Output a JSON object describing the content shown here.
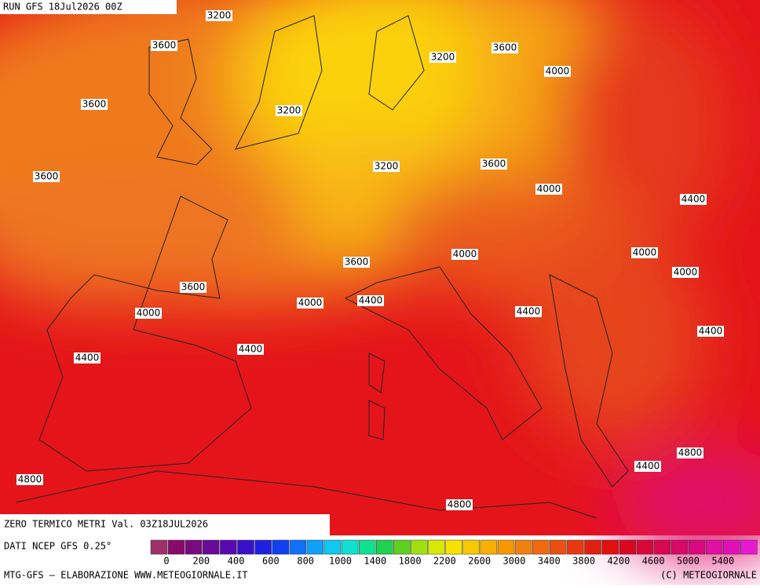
{
  "header": {
    "run": "RUN GFS 18Jul2026 00Z"
  },
  "map": {
    "title": "ZERO TERMICO METRI Val. 03Z18JUL2026",
    "contour_labels": [
      "3200",
      "3600",
      "3200",
      "3600",
      "4000",
      "3600",
      "3200",
      "3200",
      "3600",
      "4000",
      "4400",
      "3600",
      "3600",
      "4000",
      "4000",
      "4000",
      "3600",
      "4000",
      "4400",
      "4000",
      "4400",
      "4400",
      "4400",
      "4400",
      "4800",
      "4400",
      "4800",
      "4800"
    ]
  },
  "legend": {
    "source": "DATI NCEP GFS 0.25°",
    "labels": [
      "0",
      "200",
      "400",
      "600",
      "800",
      "1000",
      "1400",
      "1800",
      "2200",
      "2600",
      "3000",
      "3400",
      "3800",
      "4200",
      "4600",
      "5000",
      "5400"
    ]
  },
  "footer": {
    "left": "MTG-GFS — ELABORAZIONE WWW.METEOGIORNALE.IT",
    "right": "(C) METEOGIORNALE"
  }
}
